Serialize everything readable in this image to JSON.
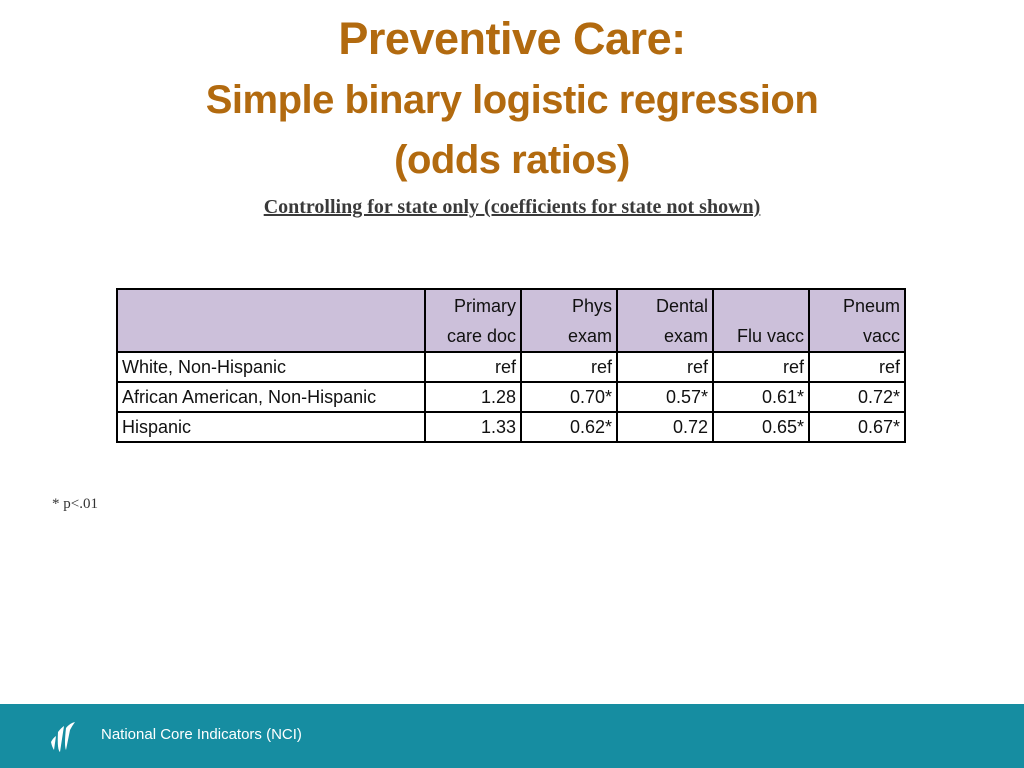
{
  "title": {
    "line1": "Preventive Care:",
    "line2": "Simple binary logistic regression",
    "line3": "(odds ratios)"
  },
  "subtitle": "Controlling for state only (coefficients for state not shown)",
  "table": {
    "headers": [
      {
        "line1": "Primary",
        "line2": "care doc"
      },
      {
        "line1": "Phys",
        "line2": "exam"
      },
      {
        "line1": "Dental",
        "line2": "exam"
      },
      {
        "line1": "",
        "line2": "Flu vacc"
      },
      {
        "line1": "Pneum",
        "line2": "vacc"
      }
    ],
    "rows": [
      {
        "label": "White, Non-Hispanic",
        "values": [
          "ref",
          "ref",
          "ref",
          "ref",
          "ref"
        ]
      },
      {
        "label": "African American, Non-Hispanic",
        "values": [
          "1.28",
          "0.70*",
          "0.57*",
          "0.61*",
          "0.72*"
        ]
      },
      {
        "label": "Hispanic",
        "values": [
          "1.33",
          "0.62*",
          "0.72",
          "0.65*",
          "0.67*"
        ]
      }
    ]
  },
  "footnote": "* p<.01",
  "footer": {
    "text": "National Core Indicators (NCI)",
    "logo_icon": "nci-logo-icon"
  },
  "colors": {
    "title": "#B26A0F",
    "header_fill": "#CCC0DA",
    "footer_bar": "#168DA1"
  }
}
